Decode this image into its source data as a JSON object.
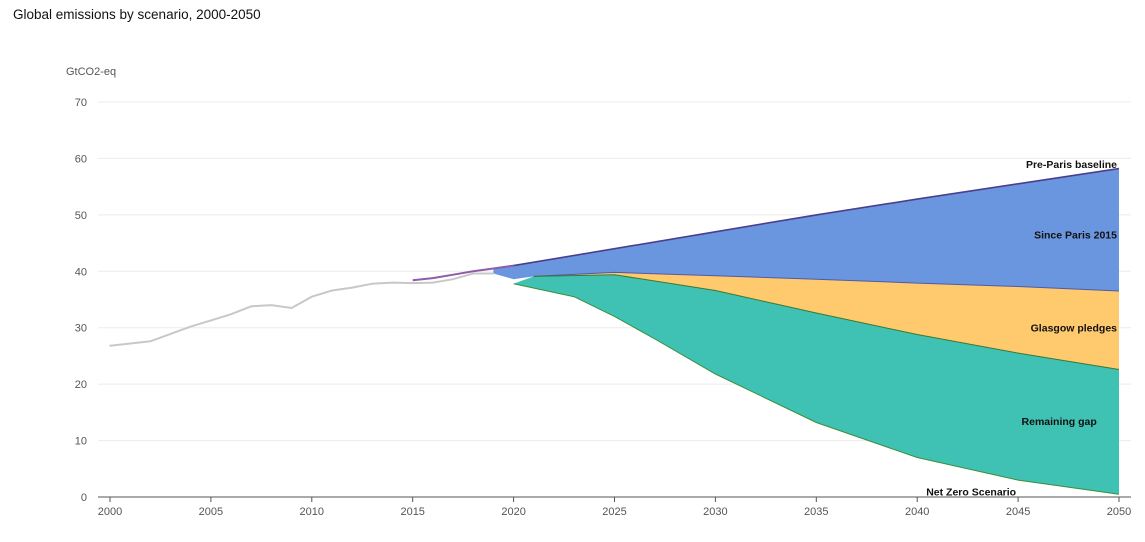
{
  "page": {
    "title": "Global emissions by scenario, 2000-2050"
  },
  "chart_data": {
    "type": "area",
    "title": "Global emissions by scenario, 2000-2050",
    "ylabel": "GtCO2-eq",
    "xlabel": "",
    "xlim": [
      2000,
      2050
    ],
    "ylim": [
      0,
      70
    ],
    "xticks": [
      2000,
      2005,
      2010,
      2015,
      2020,
      2025,
      2030,
      2035,
      2040,
      2045,
      2050
    ],
    "yticks": [
      0,
      10,
      20,
      30,
      40,
      50,
      60,
      70
    ],
    "grid": true,
    "historical": {
      "color": "#c8c8c8",
      "x": [
        2000,
        2002,
        2004,
        2005,
        2006,
        2007,
        2008,
        2009,
        2010,
        2011,
        2012,
        2013,
        2014,
        2015,
        2016,
        2017,
        2018,
        2019
      ],
      "y": [
        26.8,
        27.6,
        30.2,
        31.3,
        32.4,
        33.8,
        34.0,
        33.5,
        35.5,
        36.6,
        37.1,
        37.8,
        38.0,
        37.9,
        38.0,
        38.6,
        39.6,
        39.6
      ]
    },
    "pre_paris_history": {
      "color": "#8e5ba8",
      "x": [
        2015,
        2016,
        2017,
        2018,
        2019,
        2020
      ],
      "y": [
        38.4,
        38.8,
        39.4,
        40.0,
        40.5,
        41.0
      ]
    },
    "series": [
      {
        "name": "Pre-Paris baseline",
        "color": "#4a3f8c",
        "x": [
          2020,
          2025,
          2030,
          2035,
          2040,
          2045,
          2050
        ],
        "y": [
          41.0,
          44.0,
          47.0,
          50.0,
          52.8,
          55.5,
          58.2
        ]
      },
      {
        "name": "Since Paris 2015",
        "color": "#6a96df",
        "x": [
          2019,
          2020,
          2021,
          2025,
          2030,
          2035,
          2040,
          2045,
          2050
        ],
        "y": [
          39.6,
          38.6,
          39.1,
          39.8,
          39.2,
          38.6,
          37.9,
          37.3,
          36.5
        ]
      },
      {
        "name": "Glasgow pledges",
        "color": "#ffc96e",
        "x": [
          2021,
          2025,
          2030,
          2035,
          2040,
          2045,
          2050
        ],
        "y": [
          39.1,
          39.4,
          36.6,
          32.6,
          28.8,
          25.5,
          22.6
        ]
      },
      {
        "name": "Remaining gap",
        "color": "#3fc1b4",
        "x": [
          2020,
          2023,
          2025,
          2027,
          2030,
          2035,
          2040,
          2045,
          2050
        ],
        "y": [
          37.8,
          35.5,
          32.0,
          28.0,
          21.8,
          13.2,
          7.0,
          3.0,
          0.5
        ]
      },
      {
        "name": "Net Zero Scenario",
        "color": "#3a8f3a",
        "x": [
          2020,
          2023,
          2025,
          2027,
          2030,
          2035,
          2040,
          2045,
          2050
        ],
        "y": [
          37.8,
          35.5,
          32.0,
          28.0,
          21.8,
          13.2,
          7.0,
          3.0,
          0.5
        ]
      }
    ],
    "annotations": [
      {
        "text": "Pre-Paris baseline",
        "x": 2050,
        "y": 59.0
      },
      {
        "text": "Since Paris 2015",
        "x": 2050,
        "y": 46.5
      },
      {
        "text": "Glasgow pledges",
        "x": 2050,
        "y": 30.0
      },
      {
        "text": "Remaining gap",
        "x": 2049,
        "y": 13.5
      },
      {
        "text": "Net Zero Scenario",
        "x": 2045,
        "y": 1.0
      }
    ]
  }
}
